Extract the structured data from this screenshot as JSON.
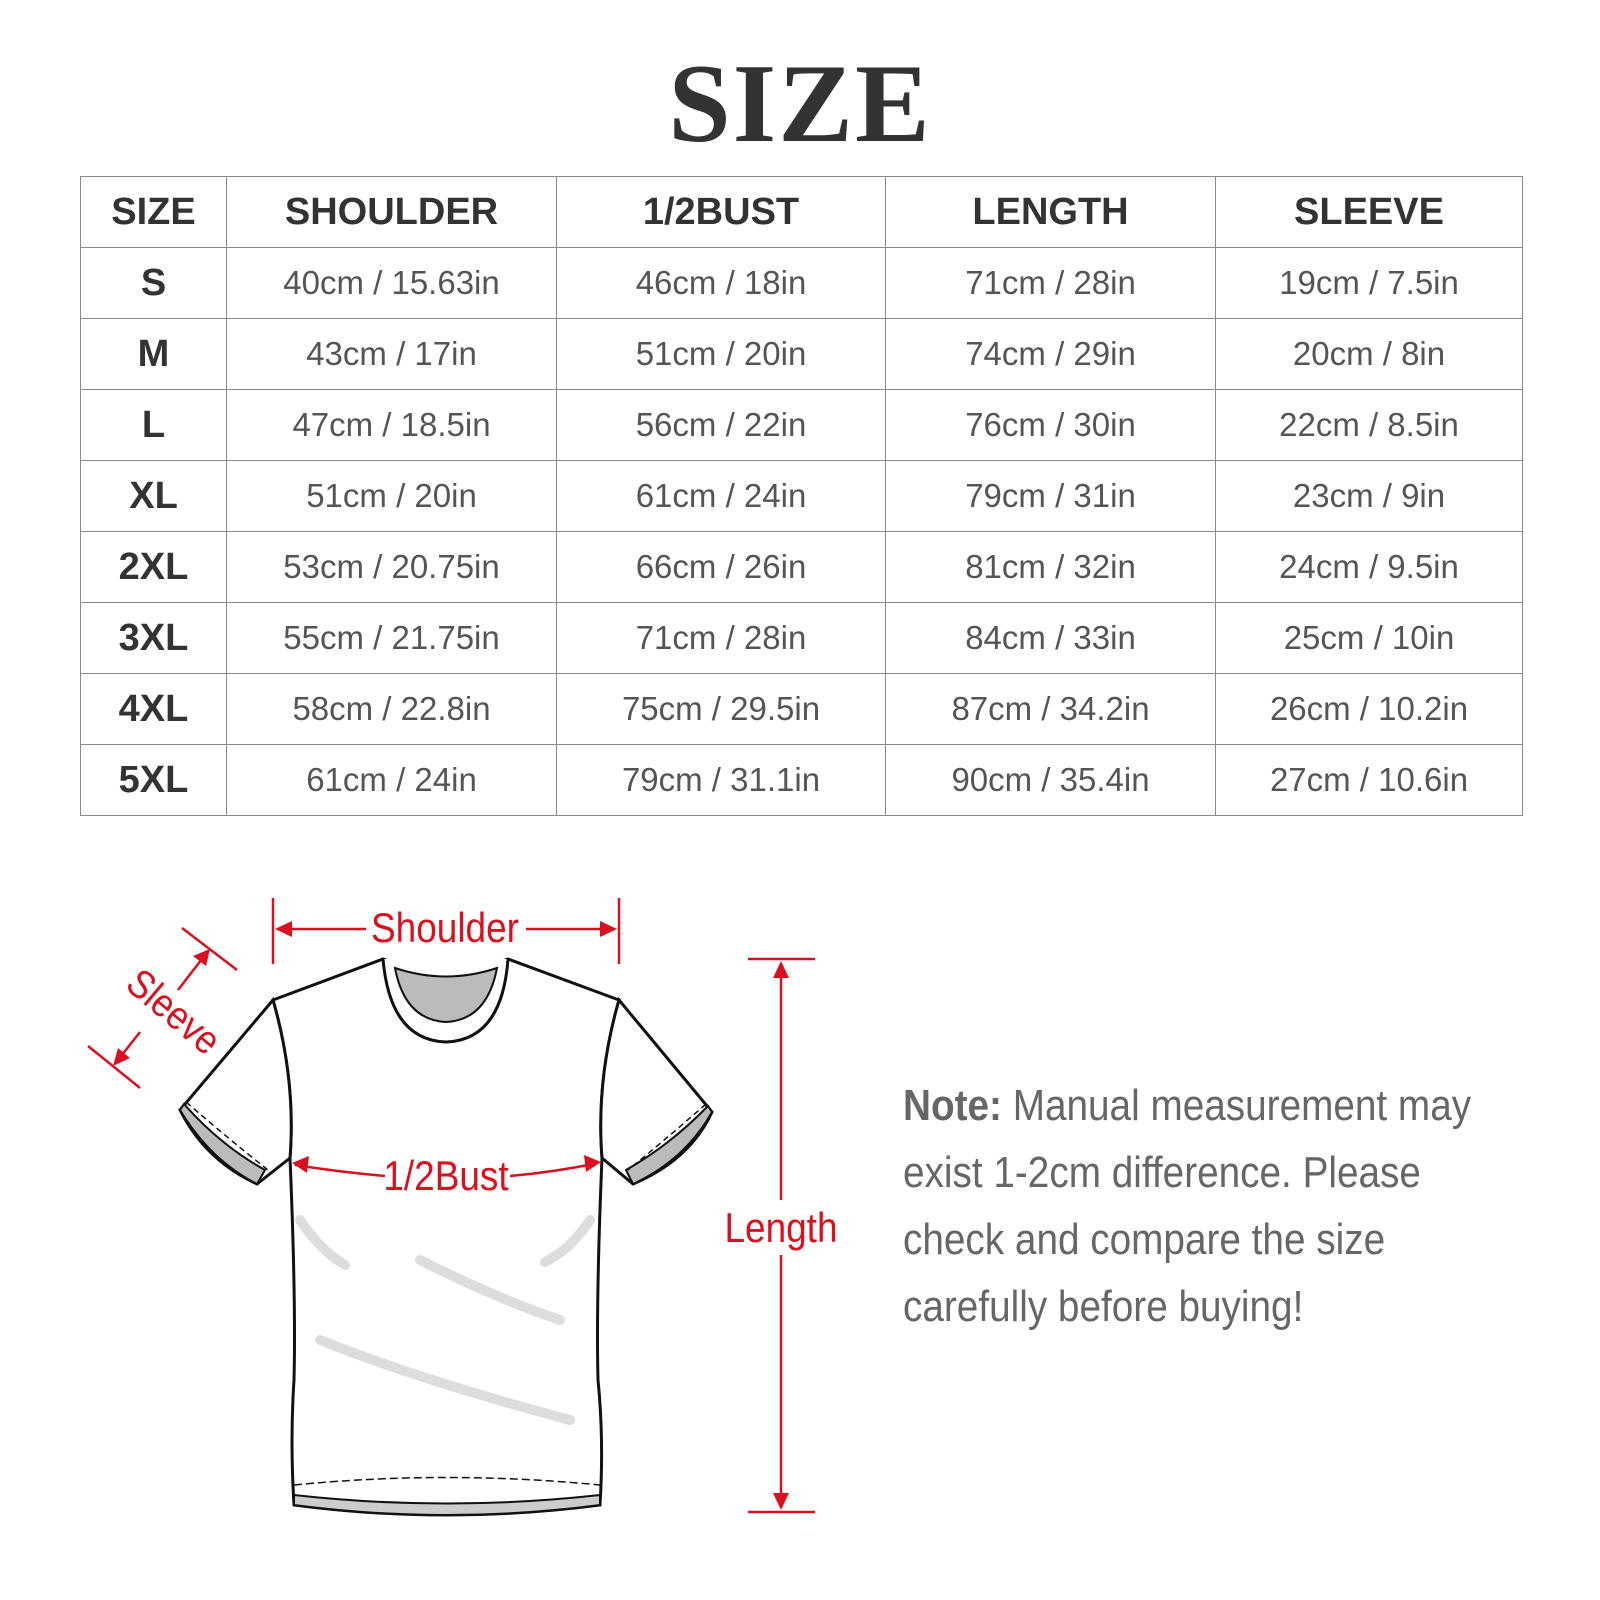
{
  "title": "SIZE",
  "table": {
    "headers": [
      "SIZE",
      "SHOULDER",
      "1/2BUST",
      "LENGTH",
      "SLEEVE"
    ],
    "rows": [
      [
        "S",
        "40cm / 15.63in",
        "46cm / 18in",
        "71cm / 28in",
        "19cm / 7.5in"
      ],
      [
        "M",
        "43cm / 17in",
        "51cm / 20in",
        "74cm / 29in",
        "20cm / 8in"
      ],
      [
        "L",
        "47cm / 18.5in",
        "56cm / 22in",
        "76cm / 30in",
        "22cm / 8.5in"
      ],
      [
        "XL",
        "51cm / 20in",
        "61cm / 24in",
        "79cm / 31in",
        "23cm / 9in"
      ],
      [
        "2XL",
        "53cm / 20.75in",
        "66cm / 26in",
        "81cm / 32in",
        "24cm / 9.5in"
      ],
      [
        "3XL",
        "55cm / 21.75in",
        "71cm / 28in",
        "84cm / 33in",
        "25cm / 10in"
      ],
      [
        "4XL",
        "58cm / 22.8in",
        "75cm / 29.5in",
        "87cm / 34.2in",
        "26cm / 10.2in"
      ],
      [
        "5XL",
        "61cm / 24in",
        "79cm / 31.1in",
        "90cm / 35.4in",
        "27cm / 10.6in"
      ]
    ]
  },
  "diagram": {
    "shoulder_label": "Shoulder",
    "sleeve_label": "Sleeve",
    "bust_label": "1/2Bust",
    "length_label": "Length",
    "accent_color": "#d9101e"
  },
  "note": {
    "label": "Note:",
    "text": " Manual measurement may exist 1-2cm difference. Please check and compare the size carefully before buying!"
  }
}
